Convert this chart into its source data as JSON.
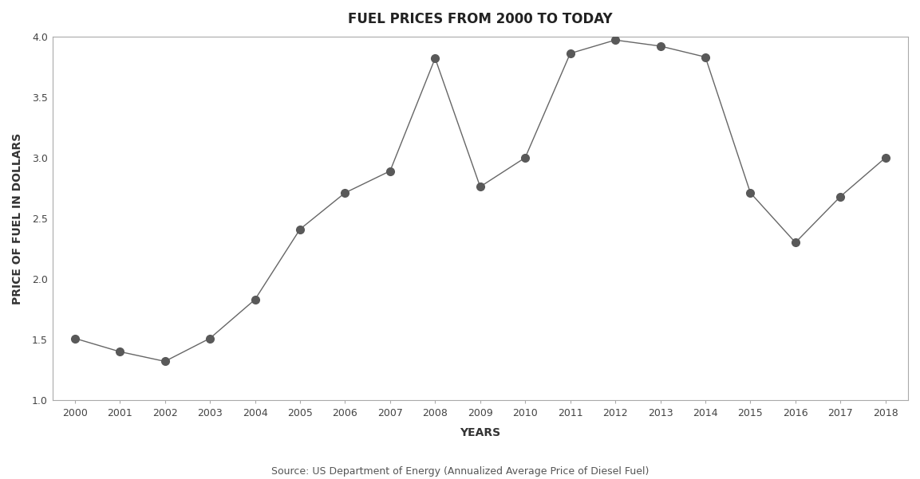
{
  "title": "FUEL PRICES FROM 2000 TO TODAY",
  "xlabel": "YEARS",
  "ylabel": "PRICE OF FUEL IN DOLLARS",
  "source": "Source: US Department of Energy (Annualized Average Price of Diesel Fuel)",
  "years": [
    2000,
    2001,
    2002,
    2003,
    2004,
    2005,
    2006,
    2007,
    2008,
    2009,
    2010,
    2011,
    2012,
    2013,
    2014,
    2015,
    2016,
    2017,
    2018
  ],
  "prices": [
    1.51,
    1.4,
    1.32,
    1.51,
    1.83,
    2.41,
    2.71,
    2.89,
    3.82,
    2.76,
    3.0,
    3.86,
    3.97,
    3.92,
    3.83,
    2.71,
    2.3,
    2.68,
    3.0
  ],
  "ylim": [
    1.0,
    4.0
  ],
  "line_color": "#666666",
  "marker_color": "#595959",
  "marker_size": 7,
  "line_width": 1.0,
  "bg_color": "#ffffff",
  "plot_bg_color": "#ffffff",
  "spine_color": "#aaaaaa",
  "title_fontsize": 12,
  "axis_label_fontsize": 10,
  "tick_fontsize": 9,
  "source_fontsize": 9
}
